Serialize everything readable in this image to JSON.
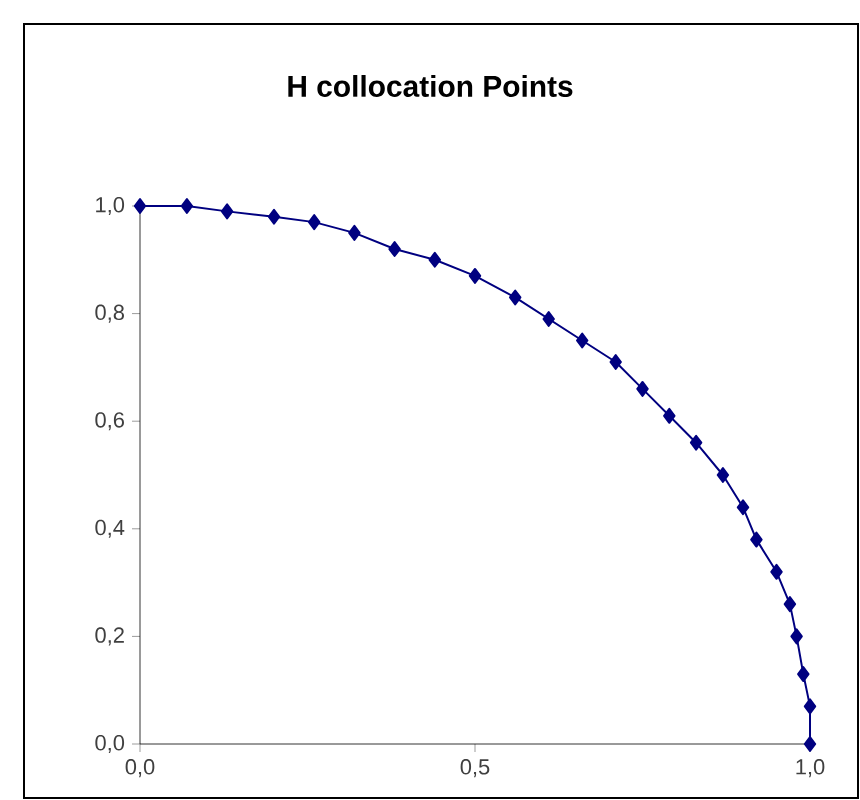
{
  "chart_data": {
    "type": "line",
    "title": "H collocation Points",
    "x": [
      0.0,
      0.07,
      0.13,
      0.2,
      0.26,
      0.32,
      0.38,
      0.44,
      0.5,
      0.56,
      0.61,
      0.66,
      0.71,
      0.75,
      0.79,
      0.83,
      0.87,
      0.9,
      0.92,
      0.95,
      0.97,
      0.98,
      0.99,
      1.0,
      1.0
    ],
    "series": [
      {
        "color": "#000080",
        "values": [
          1.0,
          1.0,
          0.99,
          0.98,
          0.97,
          0.95,
          0.92,
          0.9,
          0.87,
          0.83,
          0.79,
          0.75,
          0.71,
          0.66,
          0.61,
          0.56,
          0.5,
          0.44,
          0.38,
          0.32,
          0.26,
          0.2,
          0.13,
          0.07,
          0.0
        ]
      }
    ],
    "xlim": [
      0,
      1
    ],
    "ylim": [
      0,
      1
    ],
    "xticks": [
      {
        "value": 0,
        "label": "0,0"
      },
      {
        "value": 0.5,
        "label": "0,5"
      },
      {
        "value": 1,
        "label": "1,0"
      }
    ],
    "yticks": [
      {
        "value": 0,
        "label": "0,0"
      },
      {
        "value": 0.2,
        "label": "0,2"
      },
      {
        "value": 0.4,
        "label": "0,4"
      },
      {
        "value": 0.6,
        "label": "0,6"
      },
      {
        "value": 0.8,
        "label": "0,8"
      },
      {
        "value": 1,
        "label": "1,0"
      }
    ],
    "marker": "diamond",
    "line_style": "solid",
    "grid": false
  }
}
